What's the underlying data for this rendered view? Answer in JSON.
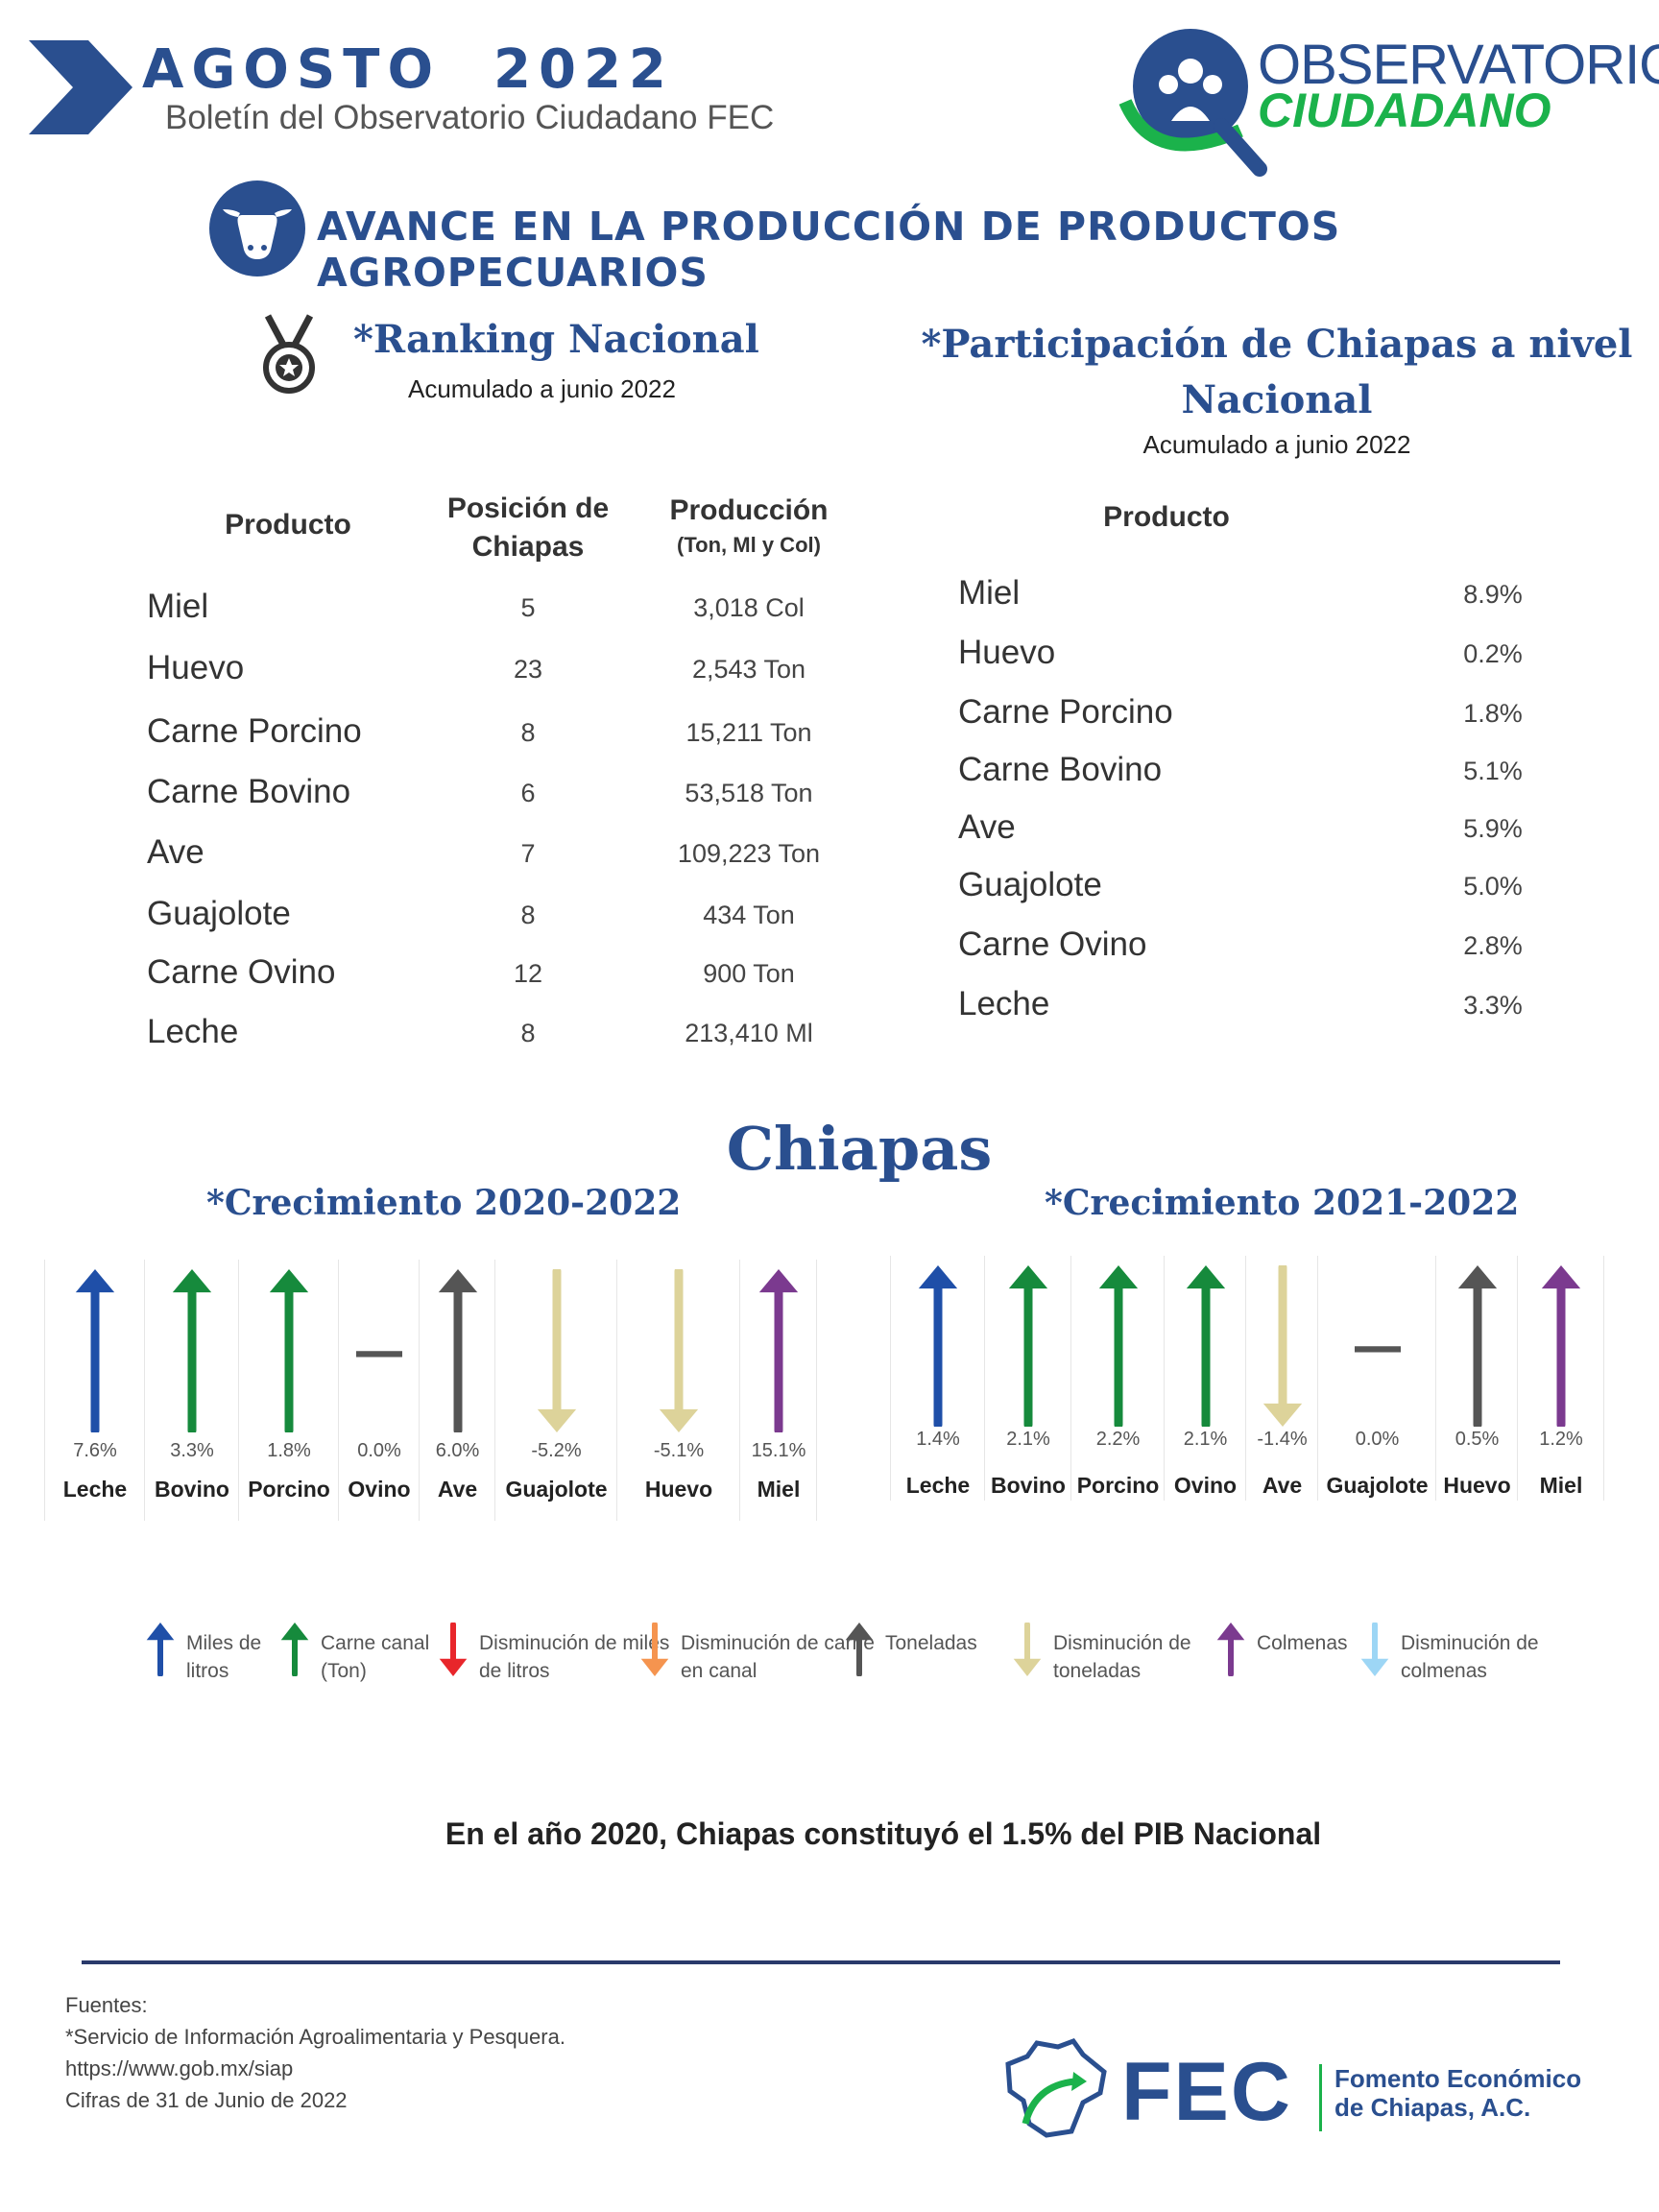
{
  "header": {
    "month": "AGOSTO  2022",
    "bulletin": "Boletín del Observatorio Ciudadano FEC",
    "logo_line1": "OBSERVATORIO",
    "logo_line2": "CIUDADANO"
  },
  "main_title": "AVANCE EN LA PRODUCCIÓN DE PRODUCTOS AGROPECUARIOS",
  "ranking": {
    "title": "*Ranking Nacional",
    "subtitle": "Acumulado a junio 2022",
    "col_product": "Producto",
    "col_position": "Posición de Chiapas",
    "col_production": "Producción",
    "col_production_unit": "(Ton, Ml y Col)",
    "rows": [
      {
        "product": "Miel",
        "position": "5",
        "production": "3,018 Col"
      },
      {
        "product": "Huevo",
        "position": "23",
        "production": "2,543 Ton"
      },
      {
        "product": "Carne Porcino",
        "position": "8",
        "production": "15,211 Ton"
      },
      {
        "product": "Carne Bovino",
        "position": "6",
        "production": "53,518 Ton"
      },
      {
        "product": "Ave",
        "position": "7",
        "production": "109,223 Ton"
      },
      {
        "product": "Guajolote",
        "position": "8",
        "production": "434 Ton"
      },
      {
        "product": "Carne Ovino",
        "position": "12",
        "production": "900 Ton"
      },
      {
        "product": "Leche",
        "position": "8",
        "production": "213,410 Ml"
      }
    ]
  },
  "participation": {
    "title": "*Participación de Chiapas a nivel Nacional",
    "subtitle": "Acumulado a junio  2022",
    "col_product": "Producto",
    "rows": [
      {
        "product": "Miel",
        "share": "8.9%"
      },
      {
        "product": "Huevo",
        "share": "0.2%"
      },
      {
        "product": "Carne Porcino",
        "share": "1.8%"
      },
      {
        "product": "Carne Bovino",
        "share": "5.1%"
      },
      {
        "product": "Ave",
        "share": "5.9%"
      },
      {
        "product": "Guajolote",
        "share": "5.0%"
      },
      {
        "product": "Carne Ovino",
        "share": "2.8%"
      },
      {
        "product": "Leche",
        "share": "3.3%"
      }
    ]
  },
  "chiapas_title": "Chiapas",
  "growth_2020": {
    "title": "*Crecimiento 2020-2022",
    "items": [
      {
        "label": "Leche",
        "value": "7.6%",
        "dir": "up",
        "color": "#1f4fa8"
      },
      {
        "label": "Bovino",
        "value": "3.3%",
        "dir": "up",
        "color": "#168a3c"
      },
      {
        "label": "Porcino",
        "value": "1.8%",
        "dir": "up",
        "color": "#168a3c"
      },
      {
        "label": "Ovino",
        "value": "0.0%",
        "dir": "flat",
        "color": "#555555"
      },
      {
        "label": "Ave",
        "value": "6.0%",
        "dir": "up",
        "color": "#555555"
      },
      {
        "label": "Guajolote",
        "value": "-5.2%",
        "dir": "down",
        "color": "#ddd39a"
      },
      {
        "label": "Huevo",
        "value": "-5.1%",
        "dir": "down",
        "color": "#ddd39a"
      },
      {
        "label": "Miel",
        "value": "15.1%",
        "dir": "up",
        "color": "#7b3a8f"
      }
    ]
  },
  "growth_2021": {
    "title": "*Crecimiento 2021-2022",
    "items": [
      {
        "label": "Leche",
        "value": "1.4%",
        "dir": "up",
        "color": "#1f4fa8"
      },
      {
        "label": "Bovino",
        "value": "2.1%",
        "dir": "up",
        "color": "#168a3c"
      },
      {
        "label": "Porcino",
        "value": "2.2%",
        "dir": "up",
        "color": "#168a3c"
      },
      {
        "label": "Ovino",
        "value": "2.1%",
        "dir": "up",
        "color": "#168a3c"
      },
      {
        "label": "Ave",
        "value": "-1.4%",
        "dir": "down",
        "color": "#ddd39a"
      },
      {
        "label": "Guajolote",
        "value": "0.0%",
        "dir": "flat",
        "color": "#555555"
      },
      {
        "label": "Huevo",
        "value": "0.5%",
        "dir": "up",
        "color": "#555555"
      },
      {
        "label": "Miel",
        "value": "1.2%",
        "dir": "up",
        "color": "#7b3a8f"
      }
    ]
  },
  "legend": [
    {
      "text": "Miles de litros",
      "dir": "up",
      "color": "#1f4fa8"
    },
    {
      "text": "Carne canal (Ton)",
      "dir": "up",
      "color": "#168a3c"
    },
    {
      "text": "Disminución de miles de litros",
      "dir": "down",
      "color": "#e8262b"
    },
    {
      "text": "Disminución de carne en canal",
      "dir": "down",
      "color": "#f5944f"
    },
    {
      "text": "Toneladas",
      "dir": "up",
      "color": "#555555"
    },
    {
      "text": "Disminución de toneladas",
      "dir": "down",
      "color": "#ddd39a"
    },
    {
      "text": "Colmenas",
      "dir": "up",
      "color": "#7b3a8f"
    },
    {
      "text": "Disminución de colmenas",
      "dir": "down",
      "color": "#9dd6f5"
    }
  ],
  "pib_note": "En el año 2020, Chiapas constituyó el 1.5% del PIB Nacional",
  "sources": {
    "l1": "Fuentes:",
    "l2": "*Servicio de Información Agroalimentaria y Pesquera.",
    "l3": "https://www.gob.mx/siap",
    "l4": "Cifras de 31 de Junio de 2022"
  },
  "fec": {
    "acronym": "FEC",
    "name1": "Fomento Económico",
    "name2": "de Chiapas, A.C."
  }
}
